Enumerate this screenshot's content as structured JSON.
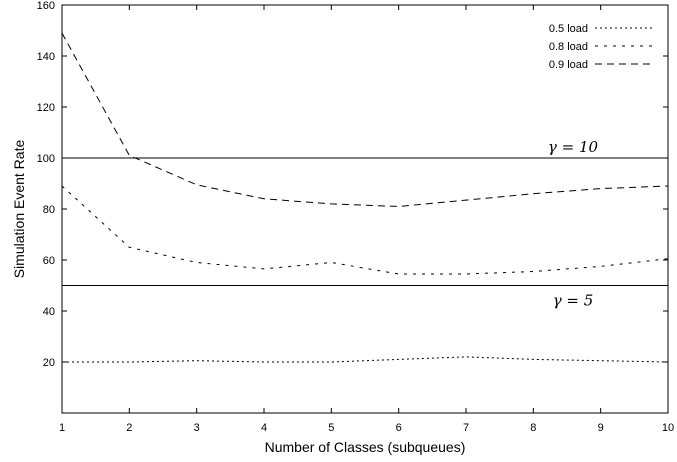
{
  "chart_data": {
    "type": "line",
    "xlabel": "Number of Classes (subqueues)",
    "ylabel": "Simulation Event Rate",
    "xlim": [
      1,
      10
    ],
    "ylim": [
      0,
      160
    ],
    "x_ticks": [
      1,
      2,
      3,
      4,
      5,
      6,
      7,
      8,
      9,
      10
    ],
    "y_ticks": [
      20,
      40,
      60,
      80,
      100,
      120,
      140,
      160
    ],
    "x": [
      1,
      2,
      3,
      4,
      5,
      6,
      7,
      8,
      9,
      10
    ],
    "grid": false,
    "legend_position": "top-right",
    "series": [
      {
        "name": "0.5 load",
        "style": "dotted",
        "values": [
          20,
          20,
          20.5,
          20,
          20,
          21,
          22,
          21,
          20.5,
          20
        ]
      },
      {
        "name": "0.8 load",
        "style": "short-dashed",
        "values": [
          89,
          65,
          59,
          56.5,
          59,
          54.5,
          54.5,
          55.5,
          57.5,
          60.5
        ]
      },
      {
        "name": "0.9 load",
        "style": "dashed",
        "values": [
          149,
          101,
          89.5,
          84,
          82,
          81,
          83.5,
          86,
          88,
          89
        ]
      }
    ],
    "reference_lines": [
      {
        "label": "γ = 10",
        "y": 100
      },
      {
        "label": "γ = 5",
        "y": 50
      }
    ]
  }
}
